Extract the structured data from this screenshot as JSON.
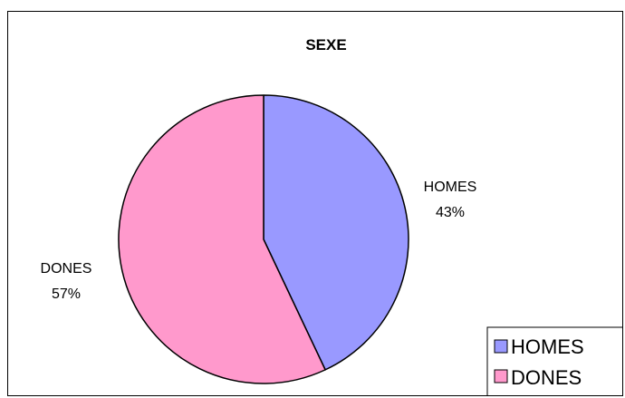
{
  "chart_data": {
    "type": "pie",
    "title": "SEXE",
    "categories": [
      "HOMES",
      "DONES"
    ],
    "values": [
      43,
      57
    ],
    "percent_labels": [
      "43%",
      "57%"
    ],
    "colors": [
      "#9999ff",
      "#ff99cc"
    ],
    "start_angle": "12 o'clock",
    "direction": "clockwise",
    "legend": {
      "position": "bottom-right",
      "items": [
        "HOMES",
        "DONES"
      ]
    }
  }
}
